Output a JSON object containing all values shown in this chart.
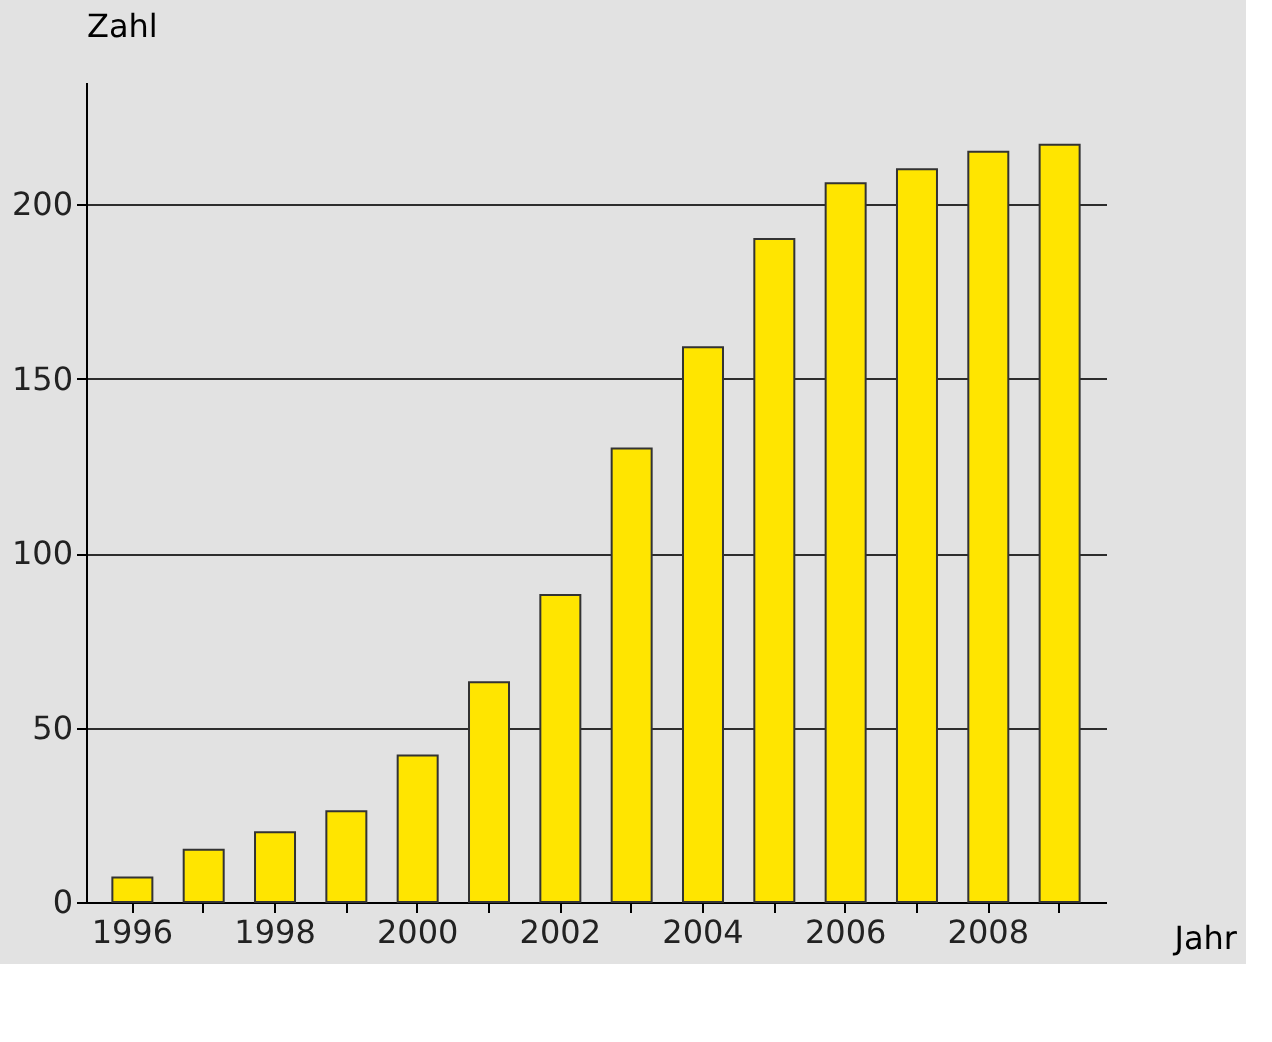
{
  "chart_data": {
    "type": "bar",
    "xlabel": "Jahr",
    "ylabel": "Zahl",
    "categories": [
      "1996",
      null,
      "1998",
      null,
      "2000",
      null,
      "2002",
      null,
      "2004",
      null,
      "2006",
      null,
      "2008",
      null
    ],
    "values": [
      7,
      15,
      20,
      26,
      42,
      63,
      88,
      130,
      159,
      190,
      206,
      210,
      215,
      217
    ],
    "color": "#ffe500",
    "ylim": [
      0,
      235
    ],
    "yticks": [
      0,
      50,
      100,
      150,
      200
    ],
    "grid": "y"
  }
}
